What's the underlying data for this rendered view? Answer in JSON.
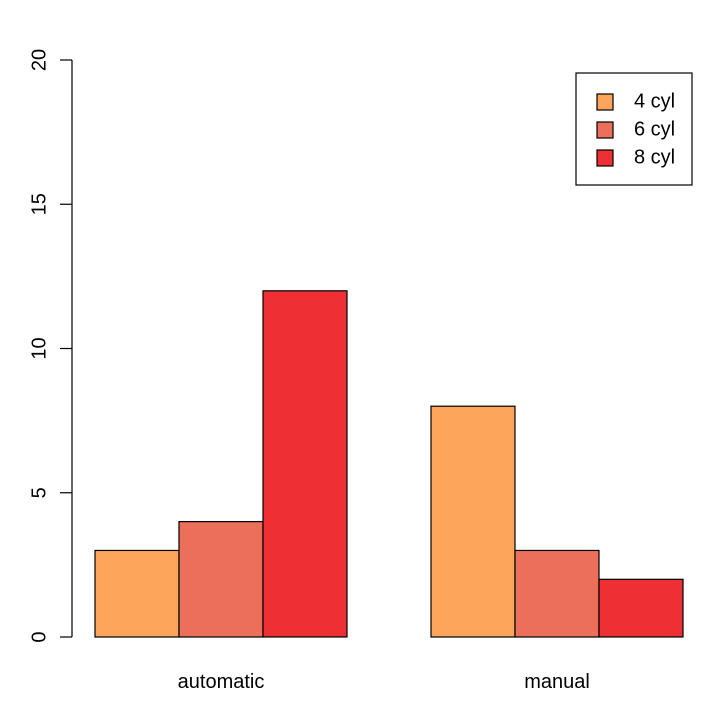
{
  "chart_data": {
    "type": "bar",
    "layout": "grouped",
    "categories": [
      "automatic",
      "manual"
    ],
    "series": [
      {
        "name": "4 cyl",
        "color": "#FDA65B",
        "values": [
          3,
          8
        ]
      },
      {
        "name": "6 cyl",
        "color": "#EC6F5A",
        "values": [
          4,
          3
        ]
      },
      {
        "name": "8 cyl",
        "color": "#EE3035",
        "values": [
          12,
          2
        ]
      }
    ],
    "title": "",
    "xlabel": "",
    "ylabel": "",
    "ylim": [
      0,
      20
    ],
    "yticks": [
      "0",
      "5",
      "10",
      "15",
      "20"
    ],
    "grid": false,
    "legend": {
      "position": "top-right",
      "boxed": true
    }
  }
}
